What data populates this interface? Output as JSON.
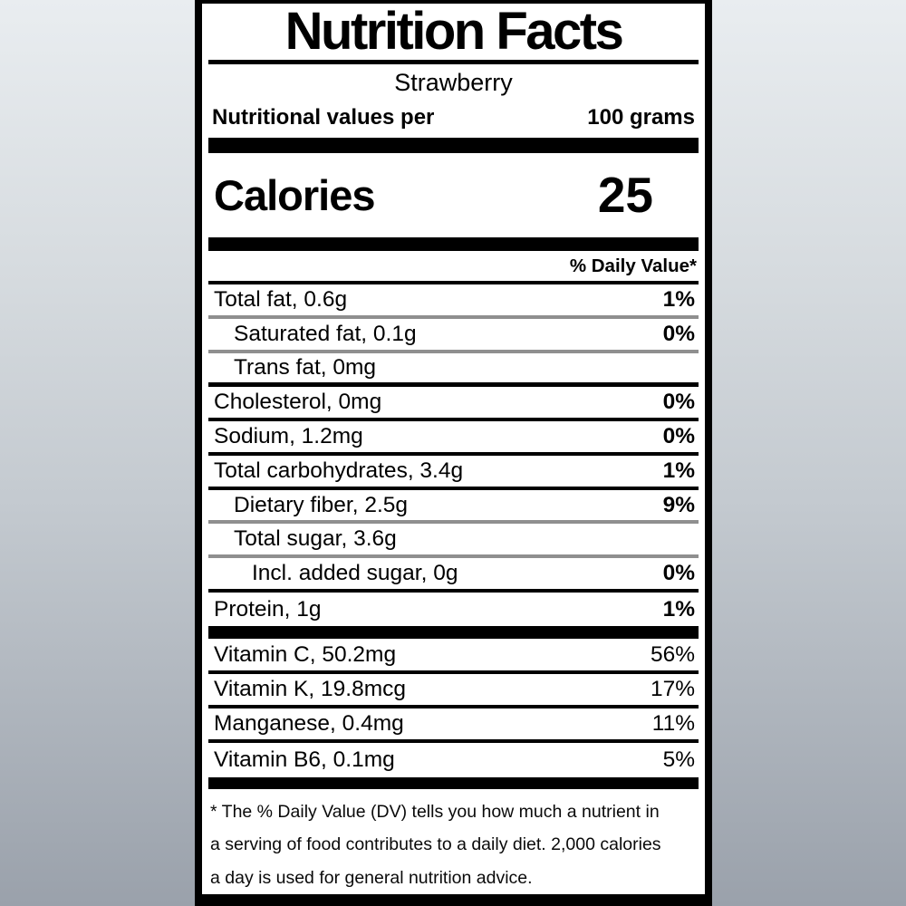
{
  "label": {
    "title": "Nutrition Facts",
    "product_name": "Strawberry",
    "serving": {
      "prefix": "Nutritional values per",
      "amount": "100 grams"
    },
    "calories": {
      "label": "Calories",
      "value": "25"
    },
    "daily_value_header": "% Daily Value*",
    "colors": {
      "label_background": "#ffffff",
      "border": "#000000",
      "gray_separator": "#8f8f8f",
      "page_gradient_top": "#e9edf0",
      "page_gradient_bottom": "#9aa1ab"
    },
    "rows": [
      {
        "label": "Total fat, 0.6g",
        "percent": "1%"
      },
      {
        "label": "Saturated fat, 0.1g",
        "percent": "0%"
      },
      {
        "label": "Trans fat, 0mg",
        "percent": ""
      },
      {
        "label": "Cholesterol, 0mg",
        "percent": "0%"
      },
      {
        "label": "Sodium, 1.2mg",
        "percent": "0%"
      },
      {
        "label": "Total carbohydrates, 3.4g",
        "percent": "1%"
      },
      {
        "label": "Dietary fiber, 2.5g",
        "percent": "9%"
      },
      {
        "label": "Total sugar, 3.6g",
        "percent": ""
      },
      {
        "label": "Incl. added sugar, 0g",
        "percent": "0%"
      },
      {
        "label": "Protein, 1g",
        "percent": "1%"
      }
    ],
    "vitamin_rows": [
      {
        "label": "Vitamin C, 50.2mg",
        "percent": "56%"
      },
      {
        "label": "Vitamin K, 19.8mcg",
        "percent": "17%"
      },
      {
        "label": "Manganese, 0.4mg",
        "percent": "11%"
      },
      {
        "label": "Vitamin B6, 0.1mg",
        "percent": "5%"
      }
    ],
    "footnote_lines": [
      "* The % Daily Value (DV) tells you how much a nutrient in",
      "a serving of food contributes to a daily diet. 2,000 calories",
      "a day is used for general nutrition advice."
    ]
  }
}
